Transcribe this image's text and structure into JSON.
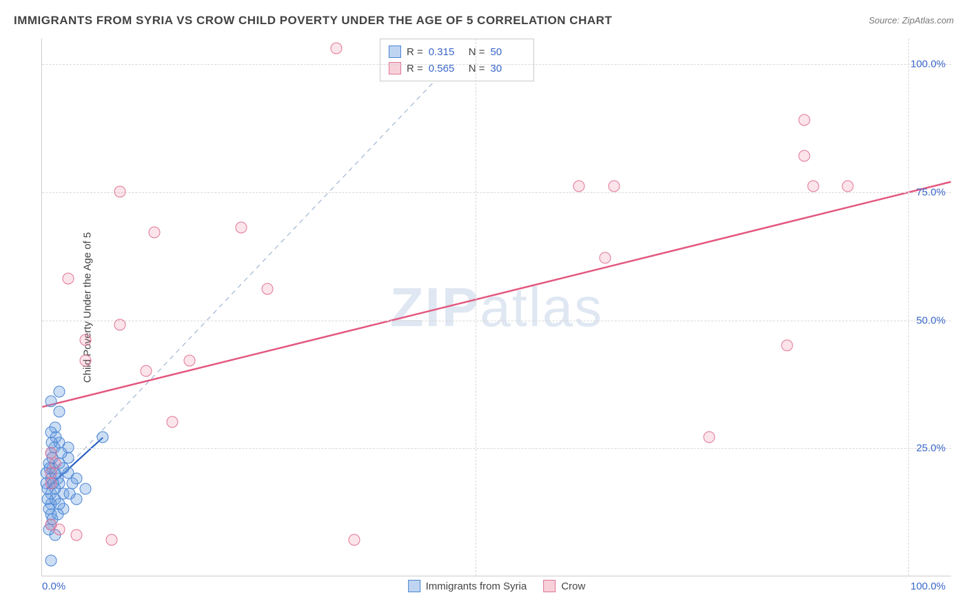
{
  "title": "IMMIGRANTS FROM SYRIA VS CROW CHILD POVERTY UNDER THE AGE OF 5 CORRELATION CHART",
  "source": "Source: ZipAtlas.com",
  "watermark_bold": "ZIP",
  "watermark_rest": "atlas",
  "chart": {
    "type": "scatter",
    "ylabel": "Child Poverty Under the Age of 5",
    "xlim": [
      0,
      105
    ],
    "ylim": [
      0,
      105
    ],
    "x_ticks": [
      {
        "v": 0,
        "label": "0.0%"
      },
      {
        "v": 100,
        "label": "100.0%"
      }
    ],
    "y_ticks": [
      {
        "v": 25,
        "label": "25.0%"
      },
      {
        "v": 50,
        "label": "50.0%"
      },
      {
        "v": 75,
        "label": "75.0%"
      },
      {
        "v": 100,
        "label": "100.0%"
      }
    ],
    "x_gridlines_at": [
      50,
      100
    ],
    "y_gridlines_at": [
      25,
      50,
      75,
      100
    ],
    "background_color": "#ffffff",
    "grid_color": "#d7d7d7",
    "series": [
      {
        "name": "Immigrants from Syria",
        "key": "blue",
        "fill": "rgba(110,160,224,0.35)",
        "stroke": "#4a84d4",
        "R": "0.315",
        "N": "50",
        "points": [
          [
            0.5,
            18
          ],
          [
            0.5,
            20
          ],
          [
            0.8,
            22
          ],
          [
            1,
            24
          ],
          [
            1,
            19
          ],
          [
            1,
            16
          ],
          [
            1.2,
            21
          ],
          [
            1.2,
            23
          ],
          [
            1.0,
            14
          ],
          [
            1.0,
            12
          ],
          [
            1.5,
            17
          ],
          [
            1.5,
            15
          ],
          [
            1.5,
            20
          ],
          [
            1.8,
            19
          ],
          [
            2,
            18
          ],
          [
            2,
            22
          ],
          [
            2,
            26
          ],
          [
            2.5,
            13
          ],
          [
            2.5,
            16
          ],
          [
            1.0,
            10
          ],
          [
            1.2,
            11
          ],
          [
            3,
            25
          ],
          [
            3,
            20
          ],
          [
            3.5,
            18
          ],
          [
            4,
            15
          ],
          [
            4,
            19
          ],
          [
            5,
            17
          ],
          [
            1,
            34
          ],
          [
            2,
            32
          ],
          [
            1.5,
            29
          ],
          [
            2,
            36
          ],
          [
            1,
            3
          ],
          [
            1.5,
            8
          ],
          [
            0.8,
            9
          ],
          [
            3,
            23
          ],
          [
            1,
            28
          ],
          [
            2,
            14
          ],
          [
            2.5,
            21
          ],
          [
            1.8,
            12
          ],
          [
            0.6,
            15
          ],
          [
            0.6,
            17
          ],
          [
            0.8,
            13
          ],
          [
            1.4,
            25
          ],
          [
            1.6,
            27
          ],
          [
            2.2,
            24
          ],
          [
            3.2,
            16
          ],
          [
            0.9,
            21
          ],
          [
            1.1,
            26
          ],
          [
            1.3,
            18
          ],
          [
            7,
            27
          ]
        ],
        "trend_solid": {
          "x0": 0.5,
          "y0": 17,
          "x1": 7,
          "y1": 27,
          "color": "#2a5fc4",
          "width": 2.2
        },
        "trend_dash": {
          "x0": 0.5,
          "y0": 17,
          "x1": 50,
          "y1": 105,
          "color": "#9fb5d4",
          "width": 1.2
        }
      },
      {
        "name": "Crow",
        "key": "pink",
        "fill": "rgba(233,120,150,0.20)",
        "stroke": "#e07494",
        "R": "0.565",
        "N": "30",
        "points": [
          [
            34,
            103
          ],
          [
            9,
            75
          ],
          [
            3,
            58
          ],
          [
            13,
            67
          ],
          [
            5,
            46
          ],
          [
            23,
            68
          ],
          [
            9,
            49
          ],
          [
            26,
            56
          ],
          [
            12,
            40
          ],
          [
            17,
            42
          ],
          [
            5,
            42
          ],
          [
            15,
            30
          ],
          [
            1,
            24
          ],
          [
            1,
            20
          ],
          [
            1,
            18
          ],
          [
            1.5,
            22
          ],
          [
            4,
            8
          ],
          [
            8,
            7
          ],
          [
            36,
            7
          ],
          [
            1,
            10
          ],
          [
            2,
            9
          ],
          [
            65,
            62
          ],
          [
            77,
            27
          ],
          [
            86,
            45
          ],
          [
            89,
            76
          ],
          [
            93,
            76
          ],
          [
            88,
            89
          ],
          [
            88,
            82
          ],
          [
            62,
            76
          ],
          [
            66,
            76
          ]
        ],
        "trend_solid": {
          "x0": 0,
          "y0": 33,
          "x1": 105,
          "y1": 77,
          "color": "#e3577f",
          "width": 2.5
        }
      }
    ],
    "bottom_legend": [
      {
        "key": "blue",
        "label": "Immigrants from Syria"
      },
      {
        "key": "pink",
        "label": "Crow"
      }
    ],
    "stats_labels": {
      "R": "R  =",
      "N": "N  ="
    }
  }
}
